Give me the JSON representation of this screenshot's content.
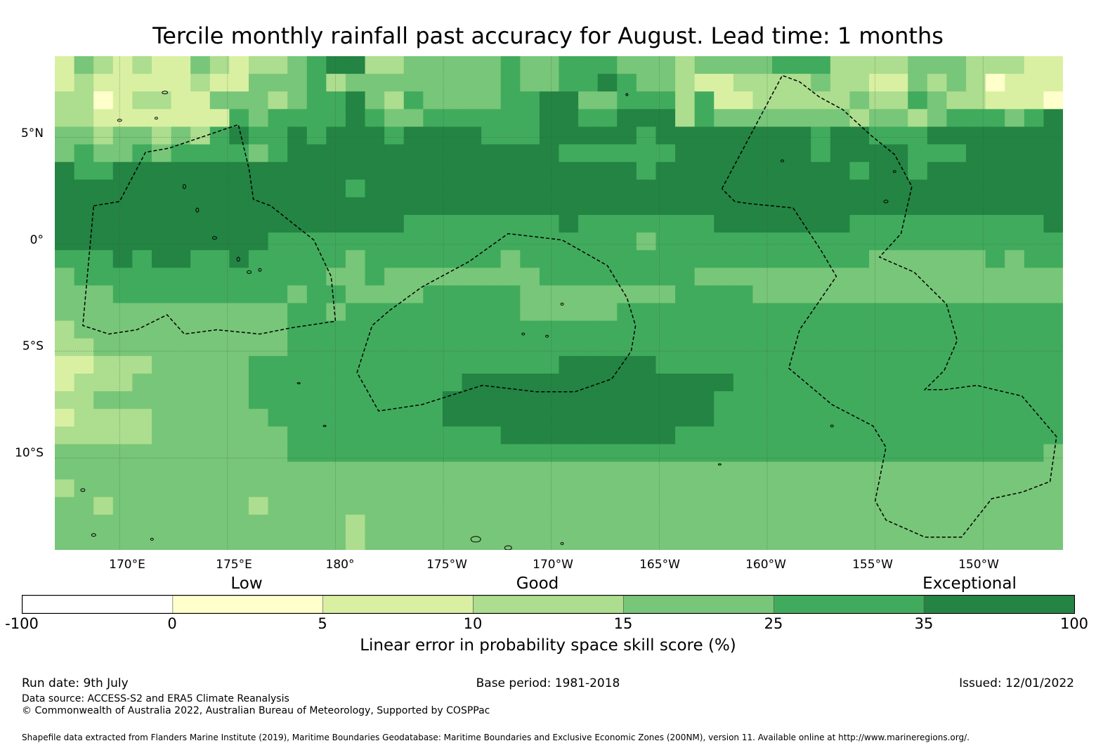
{
  "title": "Tercile monthly rainfall past accuracy for August. Lead time: 1 months",
  "map": {
    "extent": {
      "lon_min": 167,
      "lon_max": 213.7,
      "lat_min": -14.3,
      "lat_max": 8.8
    },
    "lat_labels": [
      "5°N",
      "0°",
      "5°S",
      "10°S"
    ],
    "lat_values": [
      5,
      0,
      -5,
      -10
    ],
    "lon_labels": [
      "170°E",
      "175°E",
      "180°",
      "175°W",
      "170°W",
      "165°W",
      "160°W",
      "155°W",
      "150°W"
    ],
    "lon_values": [
      170,
      175,
      180,
      185,
      190,
      195,
      200,
      205,
      210
    ],
    "skill_palette": [
      "#ffffff",
      "#ffffcc",
      "#d9f0a3",
      "#addd8e",
      "#78c679",
      "#41ab5d",
      "#238443"
    ],
    "skill_rows": [
      "2432322432334566334444454455544434444555333344433322",
      "2322222322444534444444454455654432233334332243431222",
      "3312332244434556435444455664455535223333343354332221",
      "3322222225455556544555555665566635444444434434555456",
      "4434434356556566656666555666665666666665665556666666",
      "4544545555456666666666666655555566666665666655566666",
      "6556666666666666666666666666665666666666656656666666",
      "6666666666666665666666666666666666666666666666666666",
      "6666666666666666666666666666666666666666666666666666",
      "6666666666666666665555555565555555666666655555555556",
      "6666666666655555555555555555554555555555555555555555",
      "5556566556555554555555545555555555555555554444445455",
      "4555555555555544544444444555555554444444444444444444",
      "4445555555554554444555554444444455554444444444444444",
      "4444444444445545555555554444455555555555555555555555",
      "3444444444445555555555555555555555555555555555555555",
      "3344444444445555555555555555555555555555555555555555",
      "2233344444555555555555555566666555555555555555555555",
      "2333444444555555555556666666666666655555555555555555",
      "3344444444555555555566666666666666555555555555555555",
      "2333344444455555555566666666666666555555555555555555",
      "3333344444445555555555566666666655555555555555555555",
      "4444444444445555555555555555555555555555555555555554",
      "4444444444444444444444444444444444444444444444444444",
      "3444444444444444444444444444444444444444444444444444",
      "4434444444344444444444444444444444444444444444444444",
      "4444444444444443444444444444444444444444444444444444",
      "4444444444444443444444444444444444444444444444444444"
    ],
    "eez_outlines": [
      [
        [
          168.8,
          1.8
        ],
        [
          170.0,
          2.0
        ],
        [
          171.2,
          4.3
        ],
        [
          172.3,
          4.5
        ],
        [
          175.5,
          5.6
        ],
        [
          176.0,
          3.5
        ],
        [
          176.2,
          2.1
        ],
        [
          177.0,
          1.8
        ],
        [
          179.0,
          0.2
        ],
        [
          179.8,
          -1.5
        ],
        [
          180.0,
          -3.6
        ],
        [
          178.0,
          -3.9
        ],
        [
          176.5,
          -4.2
        ],
        [
          174.5,
          -4.0
        ],
        [
          173.0,
          -4.2
        ],
        [
          172.2,
          -3.3
        ],
        [
          170.8,
          -4.0
        ],
        [
          169.5,
          -4.2
        ],
        [
          168.3,
          -3.8
        ],
        [
          168.8,
          1.8
        ]
      ],
      [
        [
          182.5,
          -3.1
        ],
        [
          184.0,
          -2.0
        ],
        [
          186.2,
          -0.8
        ],
        [
          188.0,
          0.5
        ],
        [
          190.5,
          0.2
        ],
        [
          192.6,
          -1.0
        ],
        [
          193.5,
          -2.5
        ],
        [
          193.9,
          -3.8
        ],
        [
          193.7,
          -5.0
        ],
        [
          192.8,
          -6.3
        ],
        [
          191.1,
          -6.9
        ],
        [
          189.3,
          -6.9
        ],
        [
          186.8,
          -6.6
        ],
        [
          184.0,
          -7.5
        ],
        [
          182.0,
          -7.8
        ],
        [
          181.0,
          -6.0
        ],
        [
          181.7,
          -3.8
        ],
        [
          182.5,
          -3.1
        ]
      ],
      [
        [
          197.9,
          2.6
        ],
        [
          200.7,
          7.9
        ],
        [
          201.5,
          7.6
        ],
        [
          202.4,
          6.9
        ],
        [
          203.5,
          6.3
        ],
        [
          204.8,
          5.1
        ],
        [
          205.9,
          4.2
        ],
        [
          206.7,
          2.7
        ],
        [
          206.2,
          0.5
        ],
        [
          205.2,
          -0.6
        ],
        [
          206.8,
          -1.3
        ],
        [
          208.3,
          -2.8
        ],
        [
          208.8,
          -4.5
        ],
        [
          208.2,
          -5.9
        ],
        [
          207.3,
          -6.8
        ],
        [
          208.2,
          -6.8
        ],
        [
          209.7,
          -6.6
        ],
        [
          211.8,
          -7.1
        ],
        [
          213.4,
          -9.0
        ],
        [
          213.1,
          -11.1
        ],
        [
          211.8,
          -11.6
        ],
        [
          210.4,
          -11.9
        ],
        [
          209.0,
          -13.7
        ],
        [
          207.3,
          -13.7
        ],
        [
          205.5,
          -12.9
        ],
        [
          205.0,
          -12.0
        ],
        [
          205.5,
          -9.5
        ],
        [
          204.9,
          -8.5
        ],
        [
          203.0,
          -7.5
        ],
        [
          201.0,
          -5.8
        ],
        [
          201.5,
          -4.0
        ],
        [
          203.2,
          -1.5
        ],
        [
          202.5,
          -0.3
        ],
        [
          201.2,
          1.7
        ],
        [
          199.2,
          1.9
        ],
        [
          198.5,
          2.0
        ],
        [
          197.9,
          2.6
        ]
      ]
    ]
  },
  "colorbar": {
    "category_labels": [
      "Low",
      "Good",
      "Exceptional"
    ],
    "ticks": [
      "-100",
      "0",
      "5",
      "10",
      "15",
      "25",
      "35",
      "100"
    ],
    "colors": [
      "#ffffff",
      "#ffffcc",
      "#d9f0a3",
      "#addd8e",
      "#78c679",
      "#41ab5d",
      "#238443"
    ],
    "title": "Linear error in probability space skill score (%)"
  },
  "footer": {
    "run_date": "Run date: 9th July",
    "base_period": "Base period: 1981-2018",
    "issued": "Issued: 12/01/2022",
    "data_source": "Data source: ACCESS-S2 and ERA5 Climate Reanalysis",
    "copyright": "© Commonwealth of Australia 2022, Australian Bureau of Meteorology, Supported by COSPPac",
    "shapefile": "Shapefile data extracted from Flanders Marine Institute (2019), Maritime Boundaries Geodatabase: Maritime Boundaries and Exclusive Economic Zones (200NM), version 11. Available online at http://www.marineregions.org/."
  }
}
